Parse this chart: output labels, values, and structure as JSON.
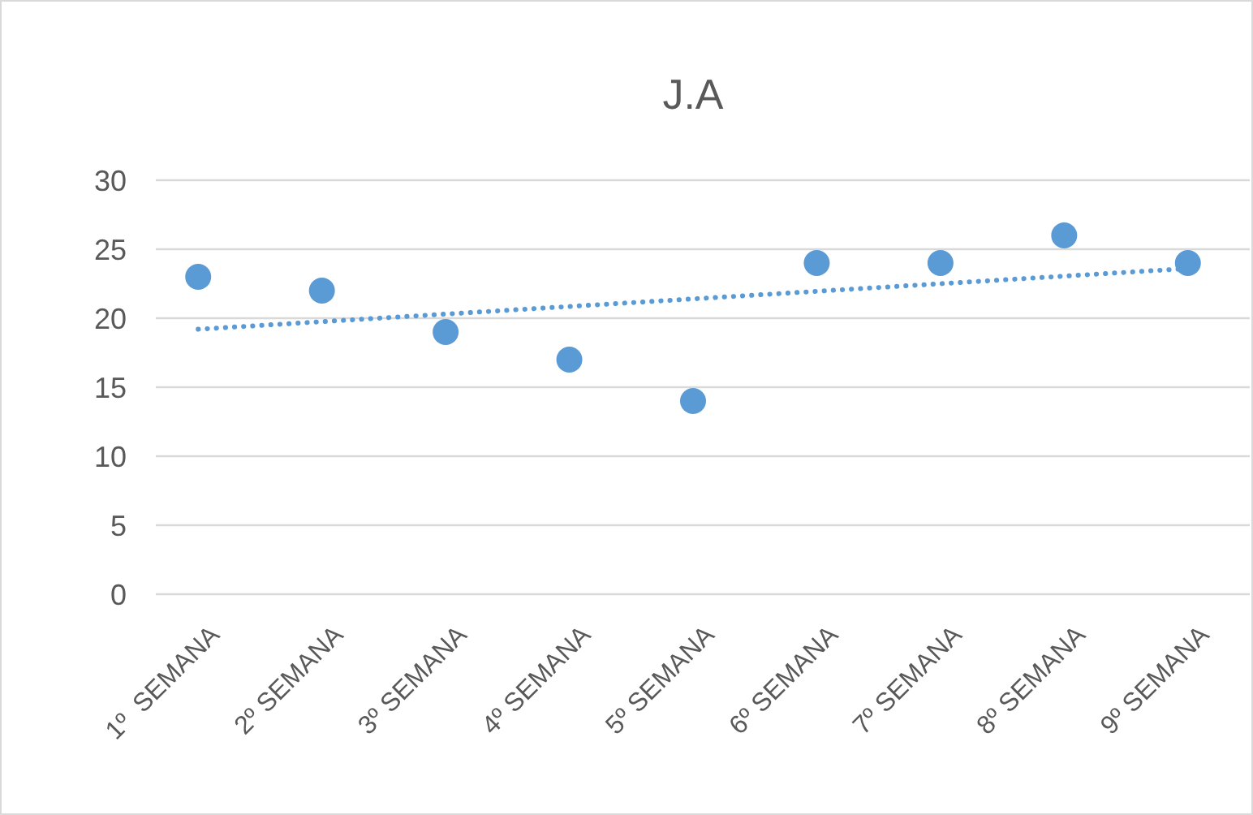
{
  "chart_data": {
    "type": "scatter",
    "title": "J.A",
    "categories": [
      "1º  SEMANA",
      "2º SEMANA",
      "3º SEMANA",
      "4º SEMANA",
      "5º SEMANA",
      "6º SEMANA",
      "7º SEMANA",
      "8º SEMANA",
      "9º SEMANA"
    ],
    "series": [
      {
        "color": "#5b9bd5",
        "marker": "circle",
        "values": [
          23,
          22,
          19,
          17,
          14,
          24,
          24,
          26,
          24
        ]
      },
      {
        "type": "line",
        "color": "#5b9bd5",
        "line_style": "dotted",
        "x": [
          "1º  SEMANA",
          "9º SEMANA"
        ],
        "values": [
          19.2,
          23.6
        ]
      }
    ],
    "ylim": [
      0,
      30
    ],
    "yticks": [
      0,
      5,
      10,
      15,
      20,
      25,
      30
    ],
    "grid": "y"
  }
}
